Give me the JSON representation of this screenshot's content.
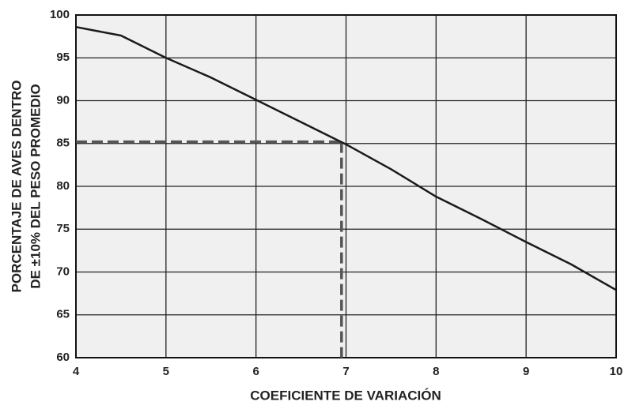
{
  "chart_data": {
    "type": "line",
    "y_label_lines": [
      "PORCENTAJE DE AVES DENTRO",
      "DE ±10% DEL PESO PROMEDIO"
    ],
    "x_label": "COEFICIENTE DE VARIACIÓN",
    "x": [
      4,
      4.5,
      5,
      5.5,
      6,
      6.5,
      7,
      7.5,
      8,
      8.5,
      9,
      9.5,
      10
    ],
    "values": [
      98.6,
      97.6,
      95,
      92.7,
      90.1,
      87.5,
      84.9,
      82,
      78.8,
      76.2,
      73.5,
      70.9,
      67.9
    ],
    "color": "#1a1a1a",
    "reference": {
      "x": 6.95,
      "y": 85.2,
      "color": "#555555"
    },
    "xlim": [
      4,
      10
    ],
    "xticks": [
      4,
      5,
      6,
      7,
      8,
      9,
      10
    ],
    "ylim": [
      60,
      100
    ],
    "yticks": [
      60,
      65,
      70,
      75,
      80,
      85,
      90,
      95,
      100
    ],
    "grid": true
  }
}
